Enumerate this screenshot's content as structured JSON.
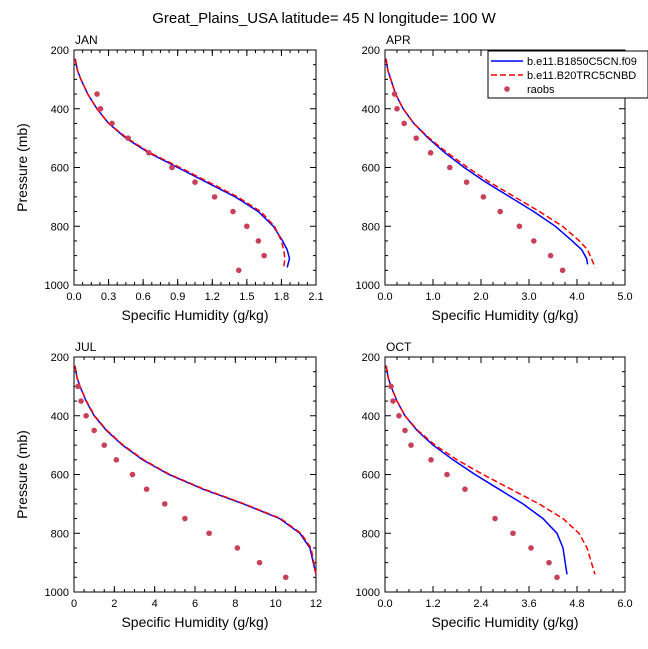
{
  "figure": {
    "title": "Great_Plains_USA  latitude= 45 N longitude= 100 W",
    "legend": [
      {
        "label": "b.e11.B1850C5CN.f09",
        "style": "solid",
        "color": "#0000ff"
      },
      {
        "label": "b.e11.B20TRC5CNBD",
        "style": "dashed",
        "color": "#ff0000"
      },
      {
        "label": "raobs",
        "style": "marker",
        "color": "#c8405a"
      }
    ]
  },
  "chart_data": [
    {
      "type": "line",
      "title": "JAN",
      "xlabel": "Specific Humidity (g/kg)",
      "ylabel": "Pressure (mb)",
      "xlim": [
        0,
        2.1
      ],
      "ylim": [
        1000,
        200
      ],
      "xticks": [
        0.0,
        0.3,
        0.6,
        0.9,
        1.2,
        1.5,
        1.8,
        2.1
      ],
      "xtick_labels": [
        "0.0",
        "0.3",
        "0.6",
        "0.9",
        "1.2",
        "1.5",
        "1.8",
        "2.1"
      ],
      "yticks": [
        200,
        400,
        600,
        800,
        1000
      ],
      "series": [
        {
          "name": "b.e11.B1850C5CN.f09",
          "x": [
            0.01,
            0.03,
            0.06,
            0.12,
            0.2,
            0.3,
            0.45,
            0.65,
            0.9,
            1.15,
            1.4,
            1.6,
            1.73,
            1.81,
            1.85,
            1.87,
            1.85
          ],
          "y": [
            230,
            270,
            300,
            350,
            400,
            450,
            500,
            550,
            600,
            650,
            700,
            750,
            800,
            850,
            880,
            910,
            940
          ]
        },
        {
          "name": "b.e11.B20TRC5CNBD",
          "x": [
            0.01,
            0.03,
            0.06,
            0.12,
            0.2,
            0.3,
            0.46,
            0.66,
            0.92,
            1.17,
            1.42,
            1.62,
            1.74,
            1.8,
            1.82,
            1.83,
            1.82
          ],
          "y": [
            230,
            270,
            300,
            350,
            400,
            450,
            500,
            550,
            600,
            650,
            700,
            750,
            800,
            850,
            880,
            910,
            940
          ]
        },
        {
          "name": "raobs",
          "x": [
            0.2,
            0.23,
            0.33,
            0.47,
            0.65,
            0.85,
            1.05,
            1.22,
            1.38,
            1.5,
            1.6,
            1.65,
            1.43
          ],
          "y": [
            350,
            400,
            450,
            500,
            550,
            600,
            650,
            700,
            750,
            800,
            850,
            900,
            950
          ]
        }
      ]
    },
    {
      "type": "line",
      "title": "APR",
      "xlabel": "Specific Humidity (g/kg)",
      "ylabel": "",
      "xlim": [
        0,
        5.0
      ],
      "ylim": [
        1000,
        200
      ],
      "xticks": [
        0.0,
        1.0,
        2.0,
        3.0,
        4.0,
        5.0
      ],
      "xtick_labels": [
        "0.0",
        "1.0",
        "2.0",
        "3.0",
        "4.0",
        "5.0"
      ],
      "yticks": [
        200,
        400,
        600,
        800,
        1000
      ],
      "series": [
        {
          "name": "b.e11.B1850C5CN.f09",
          "x": [
            0.02,
            0.06,
            0.12,
            0.22,
            0.38,
            0.6,
            0.9,
            1.25,
            1.65,
            2.1,
            2.6,
            3.1,
            3.55,
            3.9,
            4.1,
            4.2,
            4.22
          ],
          "y": [
            230,
            270,
            300,
            350,
            400,
            450,
            500,
            550,
            600,
            650,
            700,
            750,
            800,
            850,
            880,
            910,
            930
          ]
        },
        {
          "name": "b.e11.B20TRC5CNBD",
          "x": [
            0.02,
            0.06,
            0.12,
            0.22,
            0.38,
            0.6,
            0.92,
            1.3,
            1.72,
            2.18,
            2.7,
            3.22,
            3.7,
            4.05,
            4.22,
            4.3,
            4.38
          ],
          "y": [
            230,
            270,
            300,
            350,
            400,
            450,
            500,
            550,
            600,
            650,
            700,
            750,
            800,
            850,
            880,
            910,
            940
          ]
        },
        {
          "name": "raobs",
          "x": [
            0.2,
            0.25,
            0.4,
            0.65,
            0.95,
            1.35,
            1.7,
            2.05,
            2.4,
            2.8,
            3.1,
            3.45,
            3.7
          ],
          "y": [
            350,
            400,
            450,
            500,
            550,
            600,
            650,
            700,
            750,
            800,
            850,
            900,
            950
          ]
        }
      ]
    },
    {
      "type": "line",
      "title": "JUL",
      "xlabel": "Specific Humidity (g/kg)",
      "ylabel": "Pressure (mb)",
      "xlim": [
        0,
        12
      ],
      "ylim": [
        1000,
        200
      ],
      "xticks": [
        0,
        2,
        4,
        6,
        8,
        10,
        12
      ],
      "xtick_labels": [
        "0",
        "2",
        "4",
        "6",
        "8",
        "10",
        "12"
      ],
      "yticks": [
        200,
        400,
        600,
        800,
        1000
      ],
      "series": [
        {
          "name": "b.e11.B1850C5CN.f09",
          "x": [
            0.05,
            0.15,
            0.3,
            0.6,
            1.0,
            1.6,
            2.4,
            3.4,
            4.7,
            6.4,
            8.4,
            10.2,
            11.2,
            11.7,
            12.0
          ],
          "y": [
            230,
            270,
            300,
            350,
            400,
            450,
            500,
            550,
            600,
            650,
            700,
            750,
            800,
            850,
            940
          ]
        },
        {
          "name": "b.e11.B20TRC5CNBD",
          "x": [
            0.05,
            0.15,
            0.3,
            0.62,
            1.02,
            1.63,
            2.44,
            3.45,
            4.75,
            6.45,
            8.45,
            10.25,
            11.25,
            11.75,
            12.0
          ],
          "y": [
            230,
            270,
            300,
            350,
            400,
            450,
            500,
            550,
            600,
            650,
            700,
            750,
            800,
            850,
            940
          ]
        },
        {
          "name": "raobs",
          "x": [
            0.2,
            0.35,
            0.6,
            1.0,
            1.5,
            2.1,
            2.9,
            3.6,
            4.5,
            5.5,
            6.7,
            8.1,
            9.2,
            10.5
          ],
          "y": [
            300,
            350,
            400,
            450,
            500,
            550,
            600,
            650,
            700,
            750,
            800,
            850,
            900,
            950
          ]
        }
      ]
    },
    {
      "type": "line",
      "title": "OCT",
      "xlabel": "Specific Humidity (g/kg)",
      "ylabel": "",
      "xlim": [
        0,
        6.0
      ],
      "ylim": [
        1000,
        200
      ],
      "xticks": [
        0.0,
        1.2,
        2.4,
        3.6,
        4.8,
        6.0
      ],
      "xtick_labels": [
        "0.0",
        "1.2",
        "2.4",
        "3.6",
        "4.8",
        "6.0"
      ],
      "yticks": [
        200,
        400,
        600,
        800,
        1000
      ],
      "series": [
        {
          "name": "b.e11.B1850C5CN.f09",
          "x": [
            0.03,
            0.08,
            0.15,
            0.3,
            0.5,
            0.8,
            1.2,
            1.7,
            2.25,
            2.85,
            3.45,
            3.95,
            4.3,
            4.45,
            4.55
          ],
          "y": [
            230,
            270,
            300,
            350,
            400,
            450,
            500,
            550,
            600,
            650,
            700,
            750,
            800,
            850,
            940
          ]
        },
        {
          "name": "b.e11.B20TRC5CNBD",
          "x": [
            0.03,
            0.08,
            0.15,
            0.3,
            0.5,
            0.82,
            1.25,
            1.8,
            2.45,
            3.15,
            3.85,
            4.45,
            4.85,
            5.05,
            5.25
          ],
          "y": [
            230,
            270,
            300,
            350,
            400,
            450,
            500,
            550,
            600,
            650,
            700,
            750,
            800,
            850,
            940
          ]
        },
        {
          "name": "raobs",
          "x": [
            0.15,
            0.2,
            0.35,
            0.5,
            0.65,
            1.15,
            1.55,
            2.0,
            2.75,
            3.2,
            3.65,
            4.1,
            4.3
          ],
          "y": [
            300,
            350,
            400,
            450,
            500,
            550,
            600,
            650,
            750,
            800,
            850,
            900,
            950
          ]
        }
      ]
    }
  ]
}
